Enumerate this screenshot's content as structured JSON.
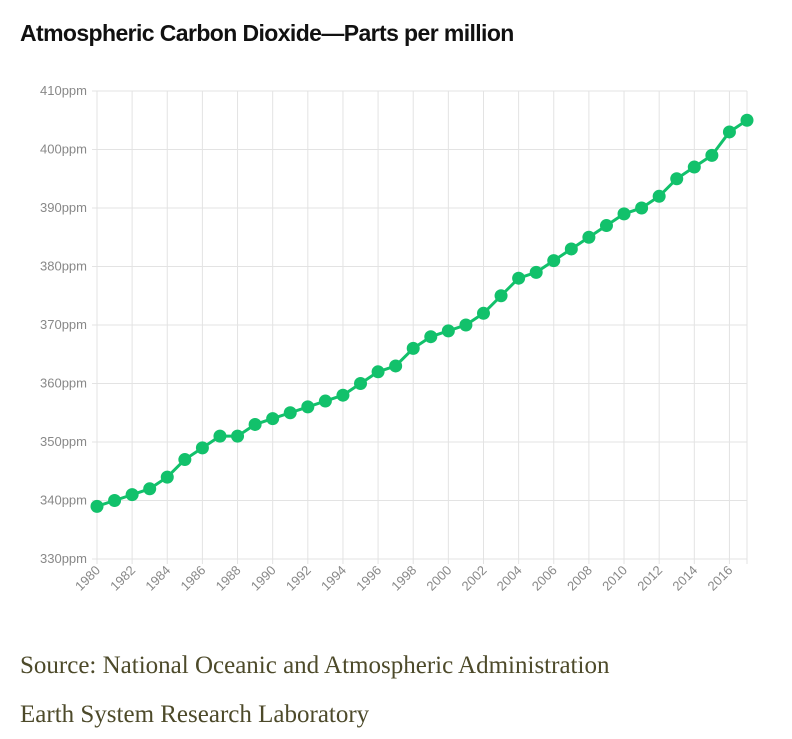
{
  "chart_data": {
    "type": "line",
    "title": "Atmospheric Carbon Dioxide—Parts per million",
    "xlabel": "",
    "ylabel": "",
    "ylim": [
      330,
      410
    ],
    "xlim": [
      1980,
      2017
    ],
    "y_ticks": [
      "330ppm",
      "340ppm",
      "350ppm",
      "360ppm",
      "370ppm",
      "380ppm",
      "390ppm",
      "400ppm",
      "410ppm"
    ],
    "x_ticks": [
      "1980",
      "1982",
      "1984",
      "1986",
      "1988",
      "1990",
      "1992",
      "1994",
      "1996",
      "1998",
      "2000",
      "2002",
      "2004",
      "2006",
      "2008",
      "2010",
      "2012",
      "2014",
      "2016"
    ],
    "grid": true,
    "legend": "none",
    "color": "#12c16b",
    "x": [
      1980,
      1981,
      1982,
      1983,
      1984,
      1985,
      1986,
      1987,
      1988,
      1989,
      1990,
      1991,
      1992,
      1993,
      1994,
      1995,
      1996,
      1997,
      1998,
      1999,
      2000,
      2001,
      2002,
      2003,
      2004,
      2005,
      2006,
      2007,
      2008,
      2009,
      2010,
      2011,
      2012,
      2013,
      2014,
      2015,
      2016,
      2017
    ],
    "values": [
      339,
      340,
      341,
      342,
      344,
      347,
      349,
      351,
      351,
      353,
      354,
      355,
      356,
      357,
      358,
      360,
      362,
      363,
      366,
      368,
      369,
      370,
      372,
      375,
      378,
      379,
      381,
      383,
      385,
      387,
      389,
      390,
      392,
      395,
      397,
      399,
      403,
      405
    ]
  },
  "source": {
    "line1": "Source: National Oceanic and Atmospheric Administration",
    "line2": "Earth System Research Laboratory"
  }
}
